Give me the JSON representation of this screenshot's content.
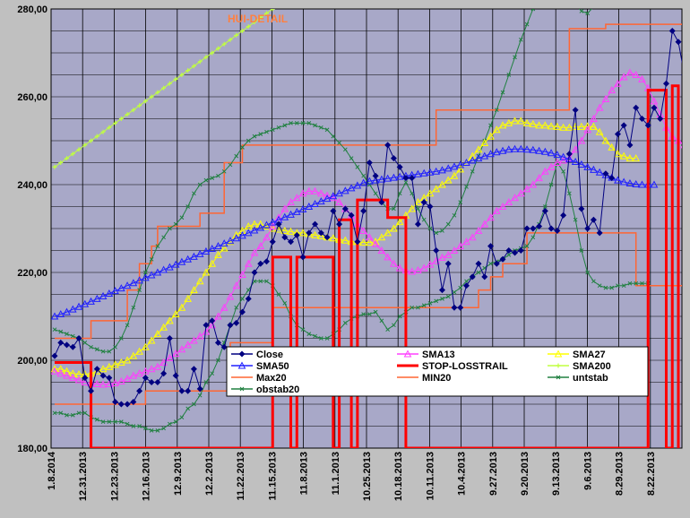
{
  "chart_data": {
    "type": "line",
    "title": "HUI-DETAIL",
    "ylim": [
      180,
      280
    ],
    "y_ticks": [
      "180,00",
      "200,00",
      "220,00",
      "240,00",
      "260,00",
      "280,00"
    ],
    "x_ticks": [
      "1.8.2014",
      "12.31.2013",
      "12.23.2013",
      "12.16.2013",
      "12.9.2013",
      "12.2.2013",
      "11.22.2013",
      "11.15.2013",
      "11.8.2013",
      "11.1.2013",
      "10.25.2013",
      "10.18.2013",
      "10.11.2013",
      "10.4.2013",
      "9.27.2013",
      "9.20.2013",
      "9.13.2013",
      "9.6.2013",
      "8.29.2013",
      "8.22.2013"
    ],
    "grid": true,
    "legend_position": "bottom-center",
    "colors": {
      "plot_bg": "#a8a8c8",
      "outer_bg": "#c0c0c0",
      "grid": "#000000",
      "close": "#000080",
      "sma13": "#ff40ff",
      "sma27": "#ffff00",
      "sma50": "#2020ff",
      "stoploss": "#ff0000",
      "sma200": "#c0ff40",
      "max20": "#ff6633",
      "min20": "#ff6633",
      "untstab": "#208040",
      "obstab20": "#208040"
    },
    "series": [
      {
        "name": "Close",
        "key": "close",
        "style": "diamond",
        "values": [
          201,
          204,
          203.5,
          203,
          205,
          196,
          193,
          198,
          196.5,
          196,
          190.5,
          190,
          190,
          190.5,
          193,
          196,
          195,
          195,
          197,
          205,
          196.5,
          193,
          193,
          198,
          193.5,
          208,
          209,
          204,
          203,
          208,
          208.5,
          211,
          214,
          220,
          222,
          222.5,
          227,
          231,
          228,
          227,
          228.5,
          223.5,
          229,
          231,
          229,
          228,
          234,
          231,
          234.5,
          233,
          227,
          234,
          245,
          242,
          236,
          249,
          246,
          244,
          241.5,
          241.5,
          231,
          236,
          235,
          225,
          216,
          222,
          212,
          212,
          217,
          219,
          222,
          219,
          226,
          222,
          223,
          225,
          224.5,
          225,
          230,
          230,
          230.5,
          234,
          230,
          229.5,
          233,
          247,
          257,
          234.5,
          230,
          232,
          229,
          242.5,
          241.5,
          251.5,
          253.5,
          249,
          257.5,
          255,
          253.5,
          257.5,
          255,
          263,
          275,
          272.5,
          265,
          261.5,
          274.5
        ]
      },
      {
        "name": "SMA13",
        "key": "sma13",
        "style": "triangle",
        "values": [
          197.5,
          197,
          196.5,
          196,
          195.5,
          195,
          194.8,
          194.6,
          194.5,
          194.6,
          194.8,
          195.2,
          195.8,
          196.5,
          197,
          197.5,
          198,
          198.5,
          199.5,
          200.5,
          201.5,
          202.5,
          203.5,
          204.5,
          205.5,
          206.5,
          208,
          210,
          212,
          214.5,
          217,
          219.5,
          222,
          224.5,
          226,
          228,
          230.5,
          232.5,
          234.5,
          236,
          237,
          238,
          238.5,
          238.5,
          238,
          237.5,
          237,
          236,
          234.5,
          233,
          231,
          229.5,
          228,
          226.5,
          225,
          223.5,
          222,
          221,
          220.5,
          220.2,
          220.5,
          221,
          221.8,
          222.6,
          223.4,
          224,
          225,
          226,
          227,
          228,
          229.5,
          231,
          232.5,
          234,
          235,
          236,
          237,
          238,
          239,
          240,
          241.5,
          243,
          244,
          245,
          245.5,
          246,
          248,
          250,
          252.5,
          255,
          257.5,
          259.5,
          261.5,
          263,
          264.5,
          265.5,
          265,
          264,
          262,
          259,
          256,
          253,
          251,
          250,
          249,
          248
        ]
      },
      {
        "name": "SMA27",
        "key": "sma27",
        "style": "triangle",
        "values": [
          198,
          198,
          197.5,
          197,
          196.8,
          196.8,
          197,
          197.5,
          198,
          198.5,
          199,
          199.5,
          200,
          201,
          202,
          203,
          204.5,
          206,
          207.5,
          209,
          210.5,
          212,
          214,
          216,
          218,
          220,
          222,
          224,
          225.5,
          227,
          228.5,
          229.5,
          230.5,
          231,
          231,
          230.5,
          230,
          229.8,
          229.5,
          229.3,
          229,
          229,
          228.8,
          228.5,
          228.3,
          228,
          227.8,
          227.5,
          227.3,
          227,
          227,
          226.8,
          226.8,
          227,
          228,
          229,
          230,
          231.5,
          233,
          234.5,
          236,
          237,
          238,
          239,
          240,
          241,
          242,
          243.5,
          245,
          246.5,
          248,
          249.5,
          251,
          252.5,
          253.5,
          254,
          254.5,
          254.5,
          254,
          253.8,
          253.5,
          253.5,
          253.3,
          253.2,
          253,
          253,
          253.2,
          253.2,
          253.3,
          253.2,
          252,
          250,
          248.5,
          247,
          246.5,
          246,
          246
        ]
      },
      {
        "name": "SMA50",
        "key": "sma50",
        "style": "triangle",
        "values": [
          210,
          210.5,
          211,
          211.6,
          212.2,
          212.8,
          213.4,
          214,
          214.6,
          215.2,
          215.8,
          216.4,
          217,
          217.6,
          218.2,
          218.8,
          219.4,
          220,
          220.6,
          221.2,
          221.8,
          222.4,
          223,
          223.6,
          224.2,
          224.8,
          225.4,
          226,
          226.6,
          227.2,
          227.8,
          228.4,
          229,
          229.6,
          230.2,
          230.8,
          231.4,
          232,
          232.6,
          233.2,
          233.8,
          234.4,
          235,
          235.6,
          236.2,
          236.8,
          237.4,
          238,
          238.6,
          239.2,
          239.8,
          240.4,
          240.8,
          241,
          241.2,
          241.4,
          241.6,
          241.8,
          242,
          242.2,
          242.4,
          242.6,
          242.8,
          243,
          243.3,
          243.7,
          244.1,
          244.5,
          245,
          245.5,
          246,
          246.5,
          247,
          247.4,
          247.7,
          248,
          248.1,
          248.1,
          248,
          247.9,
          247.7,
          247.5,
          247.2,
          246.8,
          246.3,
          245.8,
          245.2,
          244.6,
          244,
          243.4,
          242.8,
          242.2,
          241.6,
          241,
          240.6,
          240.3,
          240.1,
          240,
          240,
          240
        ]
      },
      {
        "name": "STOP-LOSSTRAIL",
        "key": "stoploss",
        "style": "thick",
        "values": [
          199.5,
          199.5,
          199.5,
          199.5,
          199.5,
          199.5,
          180,
          180,
          180,
          180,
          180,
          180,
          180,
          180,
          180,
          180,
          180,
          180,
          180,
          180,
          180,
          180,
          180,
          180,
          180,
          180,
          180,
          180,
          180,
          180,
          180,
          180,
          180,
          180,
          180,
          180,
          223.5,
          223.5,
          223.5,
          180,
          223.5,
          223.5,
          223.5,
          223.5,
          223.5,
          223.5,
          180,
          232,
          232,
          180,
          236.5,
          236.5,
          236.5,
          236.5,
          236.5,
          232.5,
          232.5,
          232.5,
          180,
          180,
          180,
          180,
          180,
          180,
          180,
          180,
          180,
          180,
          180,
          180,
          180,
          180,
          180,
          180,
          180,
          180,
          180,
          180,
          180,
          180,
          180,
          180,
          180,
          180,
          180,
          180,
          180,
          180,
          180,
          180,
          180,
          180,
          180,
          180,
          180,
          180,
          180,
          180,
          261.5,
          261.5,
          261.5,
          180,
          262.5,
          180
        ]
      },
      {
        "name": "SMA200",
        "key": "sma200",
        "style": "plus",
        "values": [
          244,
          245,
          246,
          247,
          248,
          249,
          250,
          251,
          252,
          253,
          254,
          255,
          256,
          257,
          258,
          259,
          260,
          261,
          262,
          263,
          264,
          265,
          266,
          267,
          268,
          269,
          270,
          271,
          272,
          273,
          274,
          275,
          276,
          277,
          278,
          279,
          280
        ]
      },
      {
        "name": "Max20",
        "key": "max20",
        "style": "step",
        "values": [
          205,
          205,
          205,
          205,
          205,
          205,
          209,
          209,
          209,
          209,
          209,
          209,
          216,
          216,
          222,
          222,
          226,
          230.5,
          230.5,
          230.5,
          230.5,
          230.5,
          230.5,
          230.5,
          233.5,
          233.5,
          233.5,
          233.5,
          245,
          245,
          245,
          249,
          249,
          249,
          249,
          249,
          249,
          249,
          249,
          249,
          249,
          249,
          249,
          249,
          249,
          249,
          249,
          249,
          249,
          249,
          249,
          249,
          249,
          249,
          249,
          249,
          249,
          249,
          249,
          249,
          249,
          249,
          249,
          257,
          257,
          257,
          257,
          257,
          257,
          257,
          257,
          257,
          257,
          257,
          257,
          257,
          257,
          257,
          257,
          257,
          257,
          257,
          257,
          257,
          257,
          275.5,
          275.5,
          275.5,
          275.5,
          275.5,
          275.5,
          276.5,
          276.5,
          276.5,
          276.5,
          276.5,
          276.5,
          276.5,
          276.5,
          276.5,
          276.5,
          276.5,
          276.5,
          276.5,
          276.5,
          276.5
        ]
      },
      {
        "name": "MIN20",
        "key": "min20",
        "style": "step",
        "values": [
          190,
          190,
          190,
          190,
          190,
          190,
          190,
          190,
          190,
          190,
          190,
          190,
          190,
          190,
          190,
          193,
          193,
          193,
          193,
          193,
          193,
          193,
          193,
          193,
          193,
          193,
          193,
          193,
          193,
          204,
          204,
          204,
          204,
          204,
          204,
          204,
          212,
          212,
          212,
          212,
          212,
          212,
          212,
          212,
          212,
          212,
          212,
          212,
          212,
          212,
          212,
          212,
          212,
          212,
          212,
          212,
          212,
          212,
          212,
          212,
          212,
          212,
          212,
          212,
          212,
          212,
          212,
          212,
          212,
          212,
          216,
          216,
          219,
          219,
          222,
          222,
          222,
          222,
          229,
          229,
          229,
          229,
          229,
          229,
          229,
          229,
          229,
          229,
          229,
          229,
          229,
          229,
          229,
          229,
          229,
          229,
          217,
          217,
          217,
          217,
          217,
          217,
          217,
          217,
          217
        ]
      },
      {
        "name": "untstab",
        "key": "untstab",
        "style": "x",
        "values": [
          188,
          188,
          187.5,
          187.5,
          188,
          188,
          187,
          186.5,
          186,
          186,
          186,
          186,
          185.5,
          185,
          185,
          184.5,
          184,
          184,
          184.5,
          185.5,
          186,
          187,
          189,
          190,
          192,
          195,
          197,
          200,
          204,
          208,
          212,
          214,
          216,
          218,
          218,
          218,
          217,
          215,
          213,
          210,
          208,
          207,
          206,
          205.5,
          205,
          205,
          206,
          207,
          208.5,
          209.5,
          210,
          210.5,
          210.5,
          211,
          209,
          207,
          208,
          210,
          211,
          212,
          212,
          212.5,
          213,
          213.5,
          214,
          214.5,
          215.5,
          216.5,
          218,
          219,
          220,
          221,
          222,
          222.5,
          223,
          224,
          225,
          225.5,
          226,
          228,
          231,
          235,
          240,
          245,
          243,
          238,
          232,
          225,
          220,
          218,
          217,
          216.5,
          216.5,
          217,
          217,
          217.5,
          217.5,
          217.5,
          217.5
        ]
      },
      {
        "name": "obstab20",
        "key": "obstab20",
        "style": "x",
        "values": [
          207,
          206.5,
          206,
          205.5,
          205,
          204,
          203,
          202.5,
          202,
          202,
          203,
          205,
          208,
          212,
          216,
          220,
          223,
          226,
          228,
          230,
          231,
          232.5,
          235,
          238,
          240,
          241,
          241.5,
          242,
          243,
          244.5,
          246.5,
          248.5,
          250,
          251,
          251.5,
          252,
          252.5,
          253,
          253.5,
          254,
          254,
          254,
          254,
          253.5,
          253,
          252.5,
          251,
          249.5,
          248,
          246,
          244,
          242,
          240,
          238,
          236,
          234.5,
          234.5,
          238,
          240.5,
          238,
          234.5,
          232,
          230,
          229,
          229.5,
          231,
          233,
          236,
          239.5,
          243,
          246.5,
          250,
          253.5,
          257,
          261,
          265,
          269,
          273,
          276.5,
          280,
          283,
          286,
          289,
          292,
          288,
          284,
          281,
          279.5,
          279,
          280.5
        ]
      }
    ],
    "legend": [
      {
        "name": "Close",
        "key": "close"
      },
      {
        "name": "SMA13",
        "key": "sma13"
      },
      {
        "name": "SMA27",
        "key": "sma27"
      },
      {
        "name": "SMA50",
        "key": "sma50"
      },
      {
        "name": "STOP-LOSSTRAIL",
        "key": "stoploss"
      },
      {
        "name": "SMA200",
        "key": "sma200"
      },
      {
        "name": "Max20",
        "key": "max20"
      },
      {
        "name": "MIN20",
        "key": "min20"
      },
      {
        "name": "untstab",
        "key": "untstab"
      },
      {
        "name": "obstab20",
        "key": "obstab20"
      }
    ]
  }
}
